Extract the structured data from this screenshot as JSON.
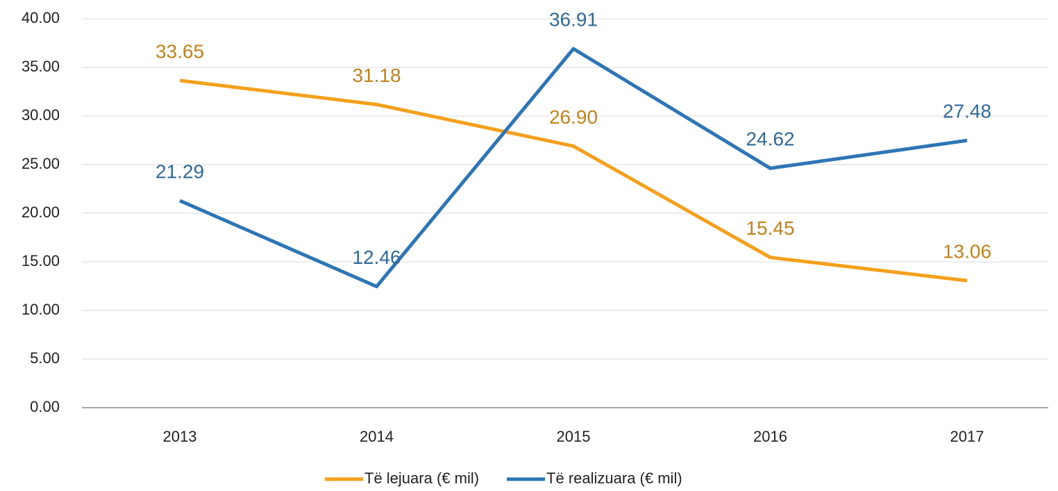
{
  "chart_data": {
    "type": "line",
    "categories": [
      "2013",
      "2014",
      "2015",
      "2016",
      "2017"
    ],
    "series": [
      {
        "name": "Të lejuara (€ mil)",
        "color": "#f5a01d",
        "values": [
          33.65,
          31.18,
          26.9,
          15.45,
          13.06
        ],
        "value_labels": [
          "33.65",
          "31.18",
          "26.90",
          "15.45",
          "13.06"
        ]
      },
      {
        "name": "Të realizuara (€ mil)",
        "color": "#2e75b6",
        "values": [
          21.29,
          12.46,
          36.91,
          24.62,
          27.48
        ],
        "value_labels": [
          "21.29",
          "12.46",
          "36.91",
          "24.62",
          "27.48"
        ]
      }
    ],
    "ylim": [
      0,
      40
    ],
    "yticks": [
      {
        "value": 0,
        "label": "0.00"
      },
      {
        "value": 5,
        "label": "5.00"
      },
      {
        "value": 10,
        "label": "10.00"
      },
      {
        "value": 15,
        "label": "15.00"
      },
      {
        "value": 20,
        "label": "20.00"
      },
      {
        "value": 25,
        "label": "25.00"
      },
      {
        "value": 30,
        "label": "30.00"
      },
      {
        "value": 35,
        "label": "35.00"
      },
      {
        "value": 40,
        "label": "40.00"
      }
    ],
    "grid": true,
    "legend": "bottom"
  }
}
